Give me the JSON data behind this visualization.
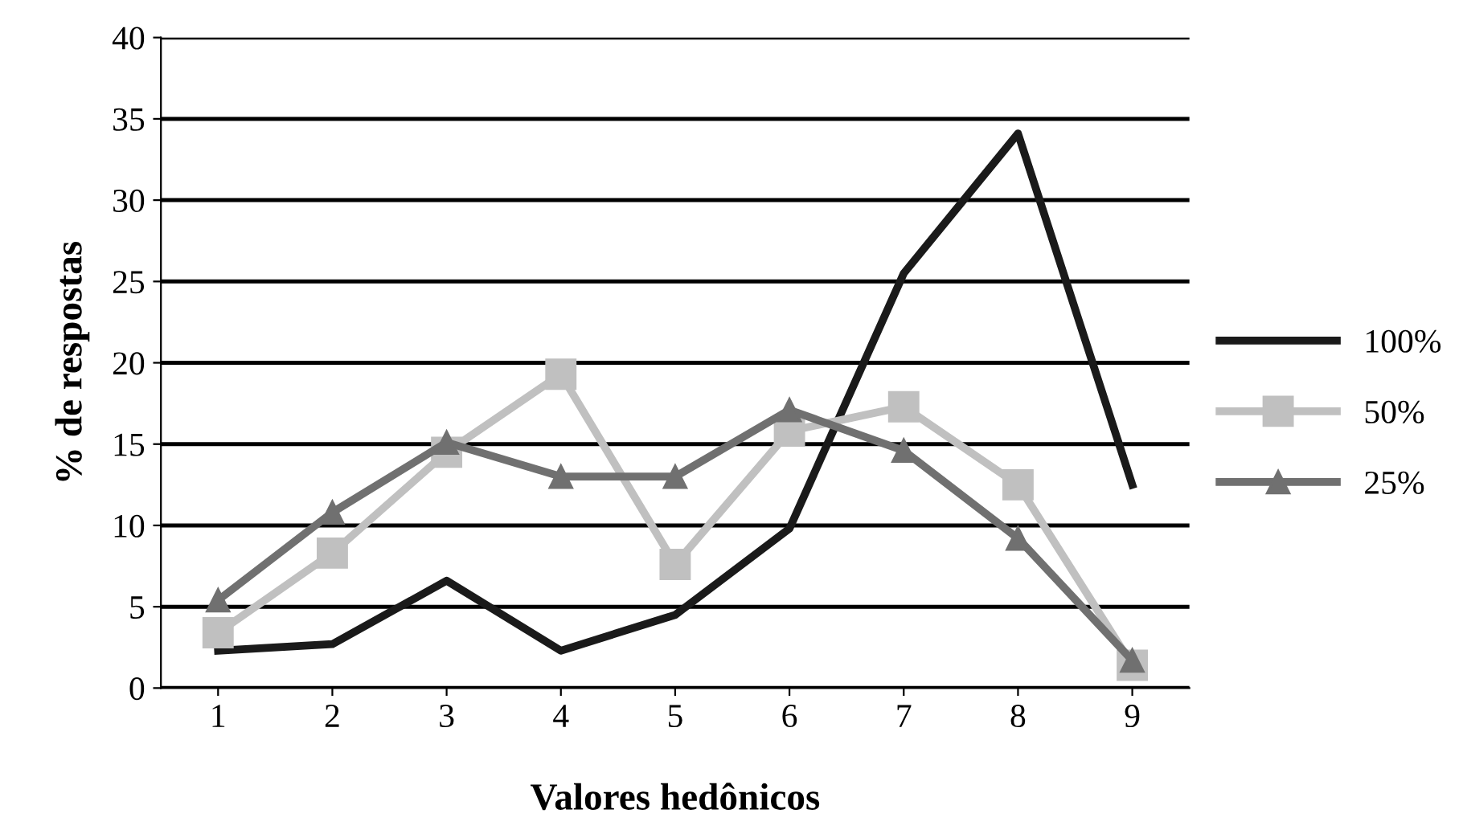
{
  "chart_data": {
    "type": "line",
    "xlabel": "Valores hedônicos",
    "ylabel": "% de respostas",
    "categories": [
      "1",
      "2",
      "3",
      "4",
      "5",
      "6",
      "7",
      "8",
      "9"
    ],
    "series": [
      {
        "name": "100%",
        "color": "#1a1a1a",
        "marker": "none",
        "values": [
          2.3,
          2.7,
          6.6,
          2.3,
          4.5,
          9.8,
          25.5,
          34.1,
          12.5
        ]
      },
      {
        "name": "50%",
        "color": "#c0c0c0",
        "marker": "square",
        "values": [
          3.4,
          8.3,
          14.5,
          19.3,
          7.6,
          15.8,
          17.3,
          12.5,
          1.4
        ]
      },
      {
        "name": "25%",
        "color": "#707070",
        "marker": "triangle",
        "values": [
          5.4,
          10.8,
          15.1,
          13.0,
          13.0,
          17.1,
          14.6,
          9.2,
          1.7
        ]
      }
    ],
    "ylim": [
      0,
      40
    ],
    "yticks": [
      0,
      5,
      10,
      15,
      20,
      25,
      30,
      35,
      40
    ],
    "grid": "y",
    "legend": "right",
    "line_style": "solid"
  }
}
